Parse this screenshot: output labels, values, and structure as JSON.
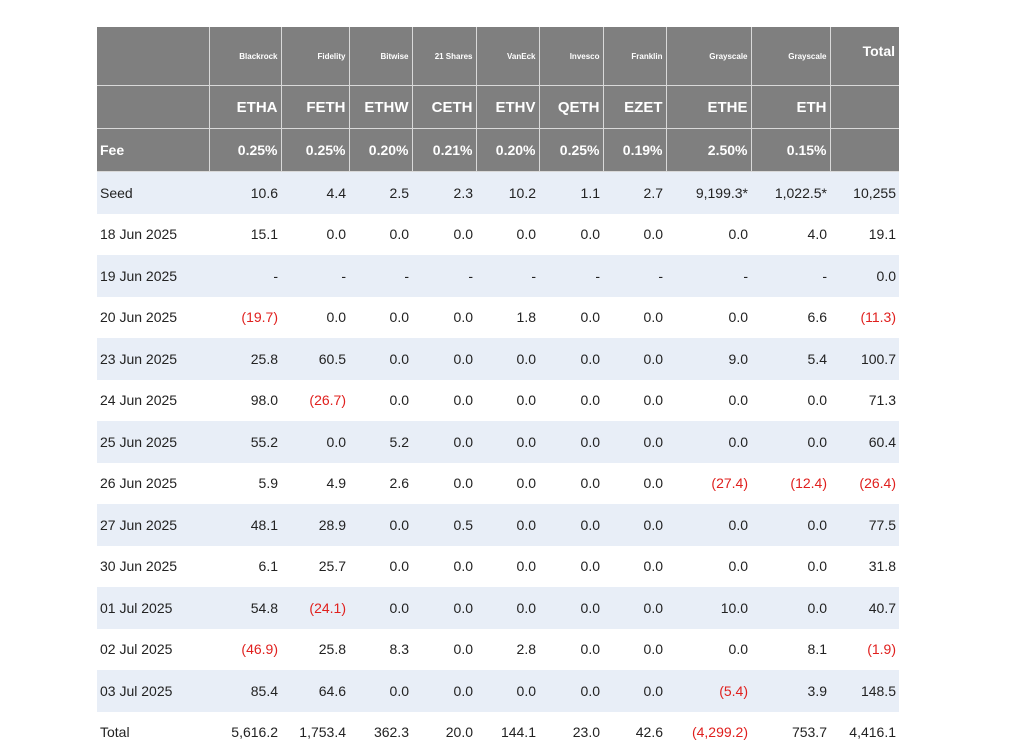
{
  "table": {
    "issuers": [
      "Blackrock",
      "Fidelity",
      "Bitwise",
      "21 Shares",
      "VanEck",
      "Invesco",
      "Franklin",
      "Grayscale",
      "Grayscale"
    ],
    "total_header": "Total",
    "tickers": [
      "ETHA",
      "FETH",
      "ETHW",
      "CETH",
      "ETHV",
      "QETH",
      "EZET",
      "ETHE",
      "ETH"
    ],
    "fee_label": "Fee",
    "fees": [
      "0.25%",
      "0.25%",
      "0.20%",
      "0.21%",
      "0.20%",
      "0.25%",
      "0.19%",
      "2.50%",
      "0.15%"
    ],
    "rows": [
      {
        "label": "Seed",
        "values": [
          "10.6",
          "4.4",
          "2.5",
          "2.3",
          "10.2",
          "1.1",
          "2.7",
          "9,199.3*",
          "1,022.5*"
        ],
        "total": "10,255",
        "shaded": true
      },
      {
        "label": "18 Jun 2025",
        "values": [
          "15.1",
          "0.0",
          "0.0",
          "0.0",
          "0.0",
          "0.0",
          "0.0",
          "0.0",
          "4.0"
        ],
        "total": "19.1",
        "shaded": false
      },
      {
        "label": "19 Jun 2025",
        "values": [
          "-",
          "-",
          "-",
          "-",
          "-",
          "-",
          "-",
          "-",
          "-"
        ],
        "total": "0.0",
        "shaded": true
      },
      {
        "label": "20 Jun 2025",
        "values": [
          "(19.7)",
          "0.0",
          "0.0",
          "0.0",
          "1.8",
          "0.0",
          "0.0",
          "0.0",
          "6.6"
        ],
        "total": "(11.3)",
        "shaded": false
      },
      {
        "label": "23 Jun 2025",
        "values": [
          "25.8",
          "60.5",
          "0.0",
          "0.0",
          "0.0",
          "0.0",
          "0.0",
          "9.0",
          "5.4"
        ],
        "total": "100.7",
        "shaded": true
      },
      {
        "label": "24 Jun 2025",
        "values": [
          "98.0",
          "(26.7)",
          "0.0",
          "0.0",
          "0.0",
          "0.0",
          "0.0",
          "0.0",
          "0.0"
        ],
        "total": "71.3",
        "shaded": false
      },
      {
        "label": "25 Jun 2025",
        "values": [
          "55.2",
          "0.0",
          "5.2",
          "0.0",
          "0.0",
          "0.0",
          "0.0",
          "0.0",
          "0.0"
        ],
        "total": "60.4",
        "shaded": true
      },
      {
        "label": "26 Jun 2025",
        "values": [
          "5.9",
          "4.9",
          "2.6",
          "0.0",
          "0.0",
          "0.0",
          "0.0",
          "(27.4)",
          "(12.4)"
        ],
        "total": "(26.4)",
        "shaded": false
      },
      {
        "label": "27 Jun 2025",
        "values": [
          "48.1",
          "28.9",
          "0.0",
          "0.5",
          "0.0",
          "0.0",
          "0.0",
          "0.0",
          "0.0"
        ],
        "total": "77.5",
        "shaded": true
      },
      {
        "label": "30 Jun 2025",
        "values": [
          "6.1",
          "25.7",
          "0.0",
          "0.0",
          "0.0",
          "0.0",
          "0.0",
          "0.0",
          "0.0"
        ],
        "total": "31.8",
        "shaded": false
      },
      {
        "label": "01 Jul 2025",
        "values": [
          "54.8",
          "(24.1)",
          "0.0",
          "0.0",
          "0.0",
          "0.0",
          "0.0",
          "10.0",
          "0.0"
        ],
        "total": "40.7",
        "shaded": true
      },
      {
        "label": "02 Jul 2025",
        "values": [
          "(46.9)",
          "25.8",
          "8.3",
          "0.0",
          "2.8",
          "0.0",
          "0.0",
          "0.0",
          "8.1"
        ],
        "total": "(1.9)",
        "shaded": false
      },
      {
        "label": "03 Jul 2025",
        "values": [
          "85.4",
          "64.6",
          "0.0",
          "0.0",
          "0.0",
          "0.0",
          "0.0",
          "(5.4)",
          "3.9"
        ],
        "total": "148.5",
        "shaded": true
      },
      {
        "label": "Total",
        "values": [
          "5,616.2",
          "1,753.4",
          "362.3",
          "20.0",
          "144.1",
          "23.0",
          "42.6",
          "(4,299.2)",
          "753.7"
        ],
        "total": "4,416.1",
        "shaded": false
      }
    ],
    "colors": {
      "header_bg": "#7f7f7f",
      "header_text": "#ffffff",
      "row_shade": "#e8eef7",
      "negative": "#e0201e"
    }
  }
}
